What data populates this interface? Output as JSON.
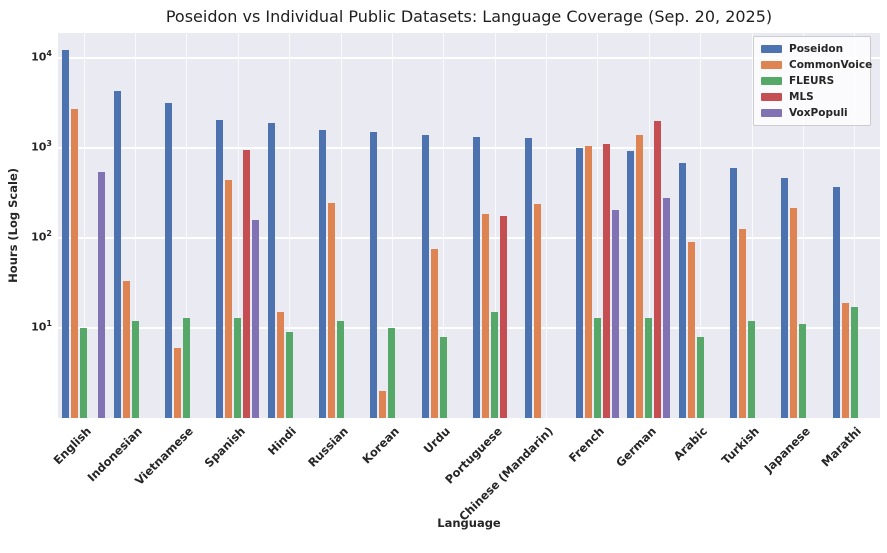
{
  "chart_data": {
    "type": "bar",
    "title": "Poseidon vs Individual Public Datasets: Language Coverage (Sep. 20, 2025)",
    "xlabel": "Language",
    "ylabel": "Hours (Log Scale)",
    "yscale": "log",
    "ylim": [
      1,
      19000
    ],
    "y_top_exponent": 4.28,
    "yticks": [
      {
        "base": "10",
        "exp": "4",
        "exponent": 4
      },
      {
        "base": "10",
        "exp": "3",
        "exponent": 3
      },
      {
        "base": "10",
        "exp": "2",
        "exponent": 2
      },
      {
        "base": "10",
        "exp": "1",
        "exponent": 1
      }
    ],
    "grid": true,
    "legend_position": "upper right",
    "categories": [
      "English",
      "Indonesian",
      "Vietnamese",
      "Spanish",
      "Hindi",
      "Russian",
      "Korean",
      "Urdu",
      "Portuguese",
      "Chinese (Mandarin)",
      "French",
      "German",
      "Arabic",
      "Turkish",
      "Japanese",
      "Marathi"
    ],
    "series": [
      {
        "name": "Poseidon",
        "color": "#4c72b0",
        "values": [
          12500,
          4300,
          3200,
          2050,
          1900,
          1600,
          1500,
          1400,
          1320,
          1290,
          1000,
          930,
          680,
          600,
          465,
          370
        ]
      },
      {
        "name": "CommonVoice",
        "color": "#dd8452",
        "values": [
          2700,
          33,
          6,
          440,
          15,
          245,
          2,
          75,
          185,
          240,
          1050,
          1390,
          90,
          125,
          215,
          19
        ]
      },
      {
        "name": "FLEURS",
        "color": "#55a868",
        "values": [
          10,
          12,
          13,
          13,
          9,
          12,
          10,
          8,
          15,
          null,
          13,
          13,
          8,
          12,
          11,
          17
        ]
      },
      {
        "name": "MLS",
        "color": "#c44e52",
        "values": [
          null,
          null,
          null,
          950,
          null,
          null,
          null,
          null,
          175,
          null,
          1100,
          2000,
          null,
          null,
          null,
          null
        ]
      },
      {
        "name": "VoxPopuli",
        "color": "#8172b3",
        "values": [
          540,
          null,
          null,
          160,
          null,
          null,
          null,
          null,
          null,
          null,
          205,
          280,
          null,
          null,
          null,
          null
        ]
      }
    ]
  }
}
